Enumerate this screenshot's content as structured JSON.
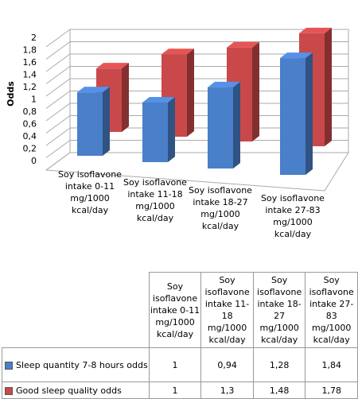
{
  "chart_data": {
    "type": "bar3d",
    "y_label": "Odds",
    "categories": [
      "Soy isoflavone intake 0-11 mg/1000 kcal/day",
      "Soy isoflavone intake 11-18 mg/1000 kcal/day",
      "Soy isoflavone intake 18-27 mg/1000 kcal/day",
      "Soy isoflavone intake 27-83 mg/1000 kcal/day"
    ],
    "series": [
      {
        "name": "Sleep quantity 7-8 hours odds",
        "color": "#4a7fc9",
        "values": [
          1,
          0.94,
          1.28,
          1.84
        ],
        "value_labels": [
          "1",
          "0,94",
          "1,28",
          "1,84"
        ]
      },
      {
        "name": "Good sleep quality odds",
        "color": "#c9494a",
        "values": [
          1,
          1.3,
          1.48,
          1.78
        ],
        "value_labels": [
          "1",
          "1,3",
          "1,48",
          "1,78"
        ]
      }
    ],
    "ylim": [
      0,
      2
    ],
    "yticks": [
      0,
      {
        "value": 0.2,
        "label": "0,2"
      },
      {
        "value": 0.4,
        "label": "0,4"
      },
      {
        "value": 0.6,
        "label": "0,6"
      },
      {
        "value": 0.8,
        "label": "0,8"
      },
      1,
      {
        "value": 1.2,
        "label": "1,2"
      },
      {
        "value": 1.4,
        "label": "1,4"
      },
      {
        "value": 1.6,
        "label": "1,6"
      },
      {
        "value": 1.8,
        "label": "1,8"
      },
      2
    ],
    "grid": true
  }
}
